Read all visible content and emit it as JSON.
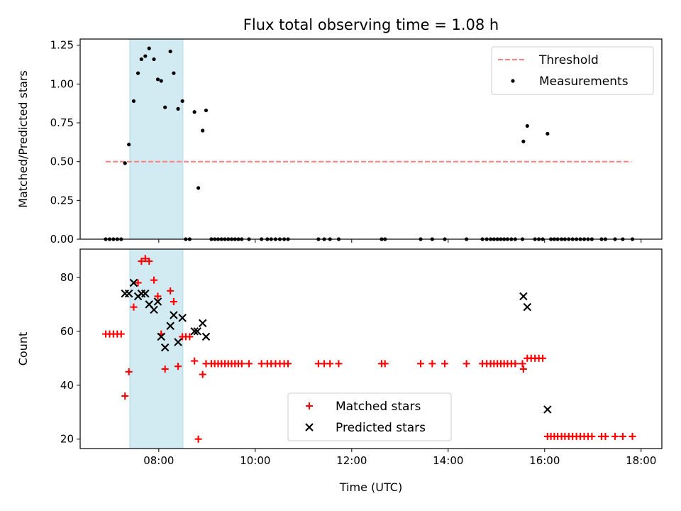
{
  "chart_data": {
    "title": "Flux total observing time = 1.08 h",
    "xlabel": "Time (UTC)",
    "xlim": [
      6.37,
      18.43
    ],
    "xticks": [
      8,
      10,
      12,
      14,
      16,
      18
    ],
    "xtick_labels": [
      "08:00",
      "10:00",
      "12:00",
      "14:00",
      "16:00",
      "18:00"
    ],
    "shaded_span": {
      "x0": 7.4,
      "x1": 8.5,
      "color": "#add8e6"
    },
    "panels": [
      {
        "type": "scatter",
        "ylabel": "Matched/Predicted stars",
        "ylim": [
          0,
          1.29
        ],
        "yticks": [
          0.0,
          0.25,
          0.5,
          0.75,
          1.0,
          1.25
        ],
        "ytick_labels": [
          "0.00",
          "0.25",
          "0.50",
          "0.75",
          "1.00",
          "1.25"
        ],
        "legend": {
          "placement": "top-right"
        },
        "series": [
          {
            "name": "Threshold",
            "kind": "line",
            "style": "dashed",
            "color": "#ff8080",
            "points": [
              [
                6.9,
                0.5
              ],
              [
                17.8,
                0.5
              ]
            ]
          },
          {
            "name": "Measurements",
            "kind": "scatter",
            "marker": "dot",
            "color": "#000000",
            "points": [
              [
                6.9,
                0
              ],
              [
                6.98,
                0
              ],
              [
                7.06,
                0
              ],
              [
                7.14,
                0
              ],
              [
                7.22,
                0
              ],
              [
                7.3,
                0.49
              ],
              [
                7.38,
                0.61
              ],
              [
                7.48,
                0.89
              ],
              [
                7.57,
                1.07
              ],
              [
                7.64,
                1.16
              ],
              [
                7.72,
                1.18
              ],
              [
                7.8,
                1.23
              ],
              [
                7.9,
                1.16
              ],
              [
                7.98,
                1.03
              ],
              [
                8.05,
                1.02
              ],
              [
                8.13,
                0.85
              ],
              [
                8.24,
                1.21
              ],
              [
                8.31,
                1.07
              ],
              [
                8.4,
                0.84
              ],
              [
                8.49,
                0.89
              ],
              [
                8.56,
                0
              ],
              [
                8.64,
                0
              ],
              [
                8.74,
                0.82
              ],
              [
                8.82,
                0.33
              ],
              [
                8.91,
                0.7
              ],
              [
                8.98,
                0.83
              ],
              [
                9.09,
                0
              ],
              [
                9.16,
                0
              ],
              [
                9.23,
                0
              ],
              [
                9.3,
                0
              ],
              [
                9.37,
                0
              ],
              [
                9.44,
                0
              ],
              [
                9.51,
                0
              ],
              [
                9.58,
                0
              ],
              [
                9.65,
                0
              ],
              [
                9.72,
                0
              ],
              [
                9.87,
                0
              ],
              [
                10.13,
                0
              ],
              [
                10.25,
                0
              ],
              [
                10.33,
                0
              ],
              [
                10.42,
                0
              ],
              [
                10.51,
                0
              ],
              [
                10.6,
                0
              ],
              [
                10.68,
                0
              ],
              [
                11.31,
                0
              ],
              [
                11.43,
                0
              ],
              [
                11.55,
                0
              ],
              [
                11.73,
                0
              ],
              [
                12.62,
                0
              ],
              [
                12.69,
                0
              ],
              [
                13.43,
                0
              ],
              [
                13.67,
                0
              ],
              [
                13.93,
                0
              ],
              [
                14.38,
                0
              ],
              [
                14.71,
                0
              ],
              [
                14.8,
                0
              ],
              [
                14.88,
                0
              ],
              [
                14.95,
                0
              ],
              [
                15.02,
                0
              ],
              [
                15.09,
                0
              ],
              [
                15.16,
                0
              ],
              [
                15.23,
                0
              ],
              [
                15.31,
                0
              ],
              [
                15.39,
                0
              ],
              [
                15.54,
                0
              ],
              [
                15.56,
                0.63
              ],
              [
                15.64,
                0.73
              ],
              [
                15.8,
                0
              ],
              [
                15.88,
                0
              ],
              [
                15.96,
                0
              ],
              [
                16.06,
                0.68
              ],
              [
                16.13,
                0
              ],
              [
                16.2,
                0
              ],
              [
                16.27,
                0
              ],
              [
                16.35,
                0
              ],
              [
                16.42,
                0
              ],
              [
                16.5,
                0
              ],
              [
                16.58,
                0
              ],
              [
                16.66,
                0
              ],
              [
                16.74,
                0
              ],
              [
                16.82,
                0
              ],
              [
                16.9,
                0
              ],
              [
                16.98,
                0
              ],
              [
                17.18,
                0
              ],
              [
                17.26,
                0
              ],
              [
                17.46,
                0
              ],
              [
                17.62,
                0
              ],
              [
                17.82,
                0
              ]
            ]
          }
        ]
      },
      {
        "type": "scatter",
        "ylabel": "Count",
        "ylim": [
          16.5,
          90.5
        ],
        "yticks": [
          20,
          40,
          60,
          80
        ],
        "ytick_labels": [
          "20",
          "40",
          "60",
          "80"
        ],
        "legend": {
          "placement": "bottom-center"
        },
        "series": [
          {
            "name": "Matched stars",
            "kind": "scatter",
            "marker": "plus",
            "color": "#ff0000",
            "points": [
              [
                6.9,
                59
              ],
              [
                6.98,
                59
              ],
              [
                7.06,
                59
              ],
              [
                7.14,
                59
              ],
              [
                7.22,
                59
              ],
              [
                7.3,
                36
              ],
              [
                7.38,
                45
              ],
              [
                7.48,
                69
              ],
              [
                7.57,
                78
              ],
              [
                7.64,
                86
              ],
              [
                7.72,
                87
              ],
              [
                7.8,
                86
              ],
              [
                7.9,
                79
              ],
              [
                7.98,
                73
              ],
              [
                8.05,
                59
              ],
              [
                8.13,
                46
              ],
              [
                8.24,
                75
              ],
              [
                8.31,
                71
              ],
              [
                8.4,
                47
              ],
              [
                8.49,
                58
              ],
              [
                8.56,
                58
              ],
              [
                8.64,
                58
              ],
              [
                8.74,
                49
              ],
              [
                8.82,
                20
              ],
              [
                8.91,
                44
              ],
              [
                8.98,
                48
              ],
              [
                9.09,
                48
              ],
              [
                9.16,
                48
              ],
              [
                9.23,
                48
              ],
              [
                9.3,
                48
              ],
              [
                9.37,
                48
              ],
              [
                9.44,
                48
              ],
              [
                9.51,
                48
              ],
              [
                9.58,
                48
              ],
              [
                9.65,
                48
              ],
              [
                9.72,
                48
              ],
              [
                9.87,
                48
              ],
              [
                10.13,
                48
              ],
              [
                10.25,
                48
              ],
              [
                10.33,
                48
              ],
              [
                10.42,
                48
              ],
              [
                10.51,
                48
              ],
              [
                10.6,
                48
              ],
              [
                10.68,
                48
              ],
              [
                11.31,
                48
              ],
              [
                11.43,
                48
              ],
              [
                11.55,
                48
              ],
              [
                11.73,
                48
              ],
              [
                12.62,
                48
              ],
              [
                12.69,
                48
              ],
              [
                13.43,
                48
              ],
              [
                13.67,
                48
              ],
              [
                13.93,
                48
              ],
              [
                14.38,
                48
              ],
              [
                14.71,
                48
              ],
              [
                14.8,
                48
              ],
              [
                14.88,
                48
              ],
              [
                14.95,
                48
              ],
              [
                15.02,
                48
              ],
              [
                15.09,
                48
              ],
              [
                15.16,
                48
              ],
              [
                15.23,
                48
              ],
              [
                15.31,
                48
              ],
              [
                15.39,
                48
              ],
              [
                15.54,
                48
              ],
              [
                15.56,
                46
              ],
              [
                15.64,
                50
              ],
              [
                15.72,
                50
              ],
              [
                15.8,
                50
              ],
              [
                15.88,
                50
              ],
              [
                15.96,
                50
              ],
              [
                16.06,
                21
              ],
              [
                16.13,
                21
              ],
              [
                16.2,
                21
              ],
              [
                16.27,
                21
              ],
              [
                16.35,
                21
              ],
              [
                16.42,
                21
              ],
              [
                16.5,
                21
              ],
              [
                16.58,
                21
              ],
              [
                16.66,
                21
              ],
              [
                16.74,
                21
              ],
              [
                16.82,
                21
              ],
              [
                16.9,
                21
              ],
              [
                16.98,
                21
              ],
              [
                17.18,
                21
              ],
              [
                17.26,
                21
              ],
              [
                17.46,
                21
              ],
              [
                17.62,
                21
              ],
              [
                17.82,
                21
              ]
            ]
          },
          {
            "name": "Predicted stars",
            "kind": "scatter",
            "marker": "x",
            "color": "#000000",
            "points": [
              [
                7.3,
                74
              ],
              [
                7.38,
                74
              ],
              [
                7.48,
                78
              ],
              [
                7.57,
                73
              ],
              [
                7.64,
                74
              ],
              [
                7.72,
                74
              ],
              [
                7.8,
                70
              ],
              [
                7.9,
                68
              ],
              [
                7.98,
                71
              ],
              [
                8.05,
                58
              ],
              [
                8.13,
                54
              ],
              [
                8.24,
                62
              ],
              [
                8.31,
                66
              ],
              [
                8.4,
                56
              ],
              [
                8.49,
                65
              ],
              [
                8.74,
                60
              ],
              [
                8.8,
                60
              ],
              [
                8.91,
                63
              ],
              [
                8.98,
                58
              ],
              [
                15.56,
                73
              ],
              [
                15.64,
                69
              ],
              [
                16.06,
                31
              ]
            ]
          }
        ]
      }
    ]
  }
}
